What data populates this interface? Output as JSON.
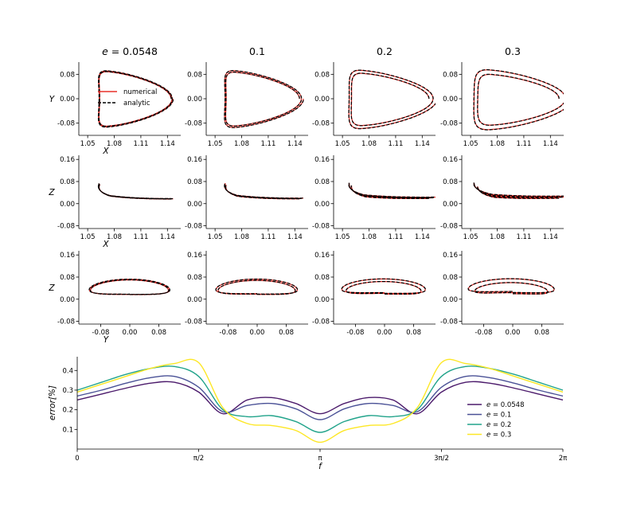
{
  "chart_data": {
    "type": "line",
    "columns": [
      {
        "title": "e = 0.0548",
        "e": 0.0548
      },
      {
        "title": "0.1",
        "e": 0.1
      },
      {
        "title": "0.2",
        "e": 0.2
      },
      {
        "title": "0.3",
        "e": 0.3
      }
    ],
    "orbit_panels": [
      {
        "row": "XY",
        "xlabel": "X",
        "ylabel": "Y",
        "xlim": [
          1.04,
          1.155
        ],
        "ylim": [
          -0.12,
          0.12
        ],
        "xticks": [
          1.05,
          1.08,
          1.11,
          1.14
        ],
        "xtick_labels": [
          "1.05",
          "1.08",
          "1.11",
          "1.14"
        ],
        "yticks": [
          -0.08,
          0.0,
          0.08
        ],
        "ytick_labels": [
          "-0.08",
          "0.00",
          "0.08"
        ]
      },
      {
        "row": "XZ",
        "xlabel": "X",
        "ylabel": "Z",
        "xlim": [
          1.04,
          1.155
        ],
        "ylim": [
          -0.09,
          0.175
        ],
        "xticks": [
          1.05,
          1.08,
          1.11,
          1.14
        ],
        "xtick_labels": [
          "1.05",
          "1.08",
          "1.11",
          "1.14"
        ],
        "yticks": [
          -0.08,
          0.0,
          0.08,
          0.16
        ],
        "ytick_labels": [
          "-0.08",
          "0.00",
          "0.08",
          "0.16"
        ]
      },
      {
        "row": "YZ",
        "xlabel": "Y",
        "ylabel": "Z",
        "xlim": [
          -0.14,
          0.14
        ],
        "ylim": [
          -0.09,
          0.175
        ],
        "xticks": [
          -0.08,
          0.0,
          0.08
        ],
        "xtick_labels": [
          "-0.08",
          "0.00",
          "0.08"
        ],
        "yticks": [
          -0.08,
          0.0,
          0.08,
          0.16
        ],
        "ytick_labels": [
          "-0.08",
          "0.00",
          "0.08",
          "0.16"
        ]
      }
    ],
    "orbit_legend": [
      {
        "label": "numerical",
        "color": "#e8302a",
        "style": "solid"
      },
      {
        "label": "analytic",
        "color": "#000000",
        "style": "dashed"
      }
    ],
    "error_panel": {
      "xlabel": "f",
      "ylabel": "error[%]",
      "xlim": [
        0,
        6.2832
      ],
      "ylim": [
        0.0,
        0.47
      ],
      "xticks": [
        0,
        1.5708,
        3.1416,
        4.7124,
        6.2832
      ],
      "xtick_labels": [
        "0",
        "π/2",
        "π",
        "3π/2",
        "2π"
      ],
      "yticks": [
        0.1,
        0.2,
        0.3,
        0.4
      ],
      "ytick_labels": [
        "0.1",
        "0.2",
        "0.3",
        "0.4"
      ],
      "f": [
        0,
        0.3142,
        0.6283,
        0.9425,
        1.2566,
        1.5708,
        1.885,
        2.1991,
        2.5133,
        2.8274,
        3.1416,
        3.4558,
        3.7699,
        4.0841,
        4.3982,
        4.7124,
        5.0265,
        5.3407,
        5.6549,
        5.969,
        6.2832
      ],
      "series": [
        {
          "name": "e = 0.0548",
          "color": "#4b1a6b",
          "values": [
            0.25,
            0.28,
            0.31,
            0.335,
            0.34,
            0.29,
            0.18,
            0.25,
            0.262,
            0.232,
            0.18,
            0.232,
            0.262,
            0.25,
            0.18,
            0.29,
            0.34,
            0.335,
            0.31,
            0.28,
            0.25
          ]
        },
        {
          "name": "e = 0.1",
          "color": "#4a5196",
          "values": [
            0.27,
            0.3,
            0.335,
            0.363,
            0.37,
            0.315,
            0.19,
            0.222,
            0.232,
            0.205,
            0.15,
            0.205,
            0.232,
            0.222,
            0.19,
            0.315,
            0.37,
            0.363,
            0.335,
            0.3,
            0.27
          ]
        },
        {
          "name": "e = 0.2",
          "color": "#21a38a",
          "values": [
            0.3,
            0.34,
            0.38,
            0.41,
            0.42,
            0.37,
            0.2,
            0.165,
            0.17,
            0.14,
            0.085,
            0.14,
            0.17,
            0.165,
            0.2,
            0.37,
            0.42,
            0.41,
            0.38,
            0.34,
            0.3
          ]
        },
        {
          "name": "e = 0.3",
          "color": "#fde725",
          "values": [
            0.29,
            0.33,
            0.37,
            0.41,
            0.435,
            0.44,
            0.21,
            0.13,
            0.12,
            0.095,
            0.035,
            0.095,
            0.12,
            0.13,
            0.21,
            0.44,
            0.435,
            0.41,
            0.37,
            0.33,
            0.29
          ]
        }
      ]
    }
  }
}
